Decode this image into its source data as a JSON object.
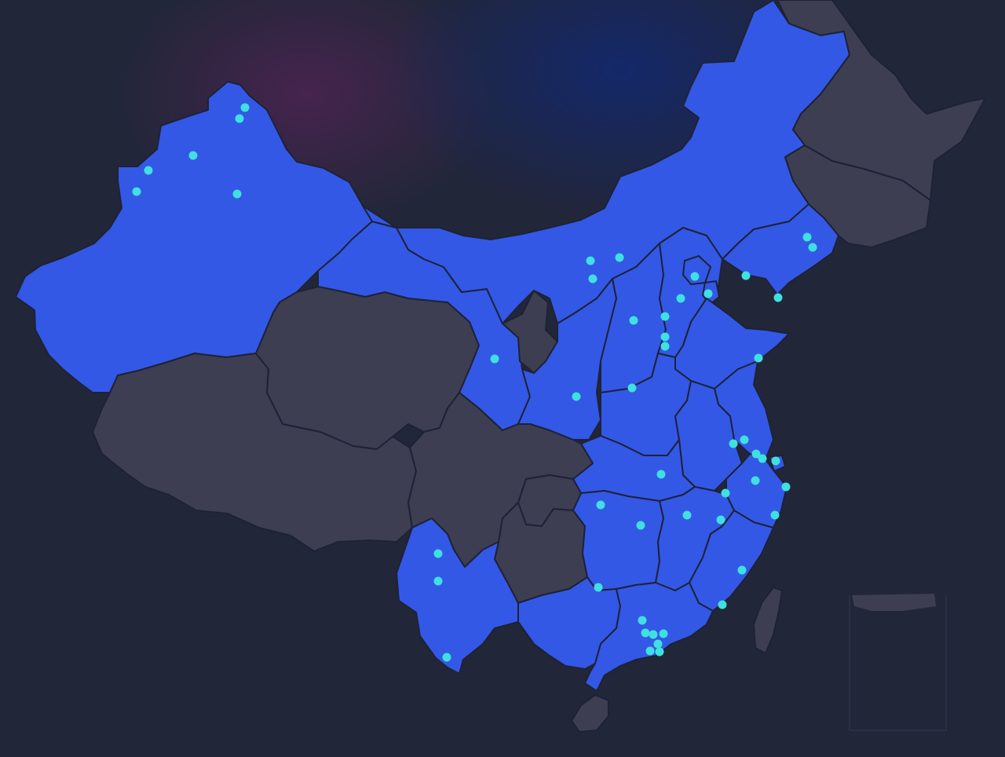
{
  "map": {
    "colors": {
      "background": "#222639",
      "glow_purple": "#4a2450",
      "glow_blue": "#14286a",
      "active_fill": "#3358e6",
      "inactive_fill": "#3d3e52",
      "border": "#1e2236",
      "marker": "#3fe0e0"
    },
    "regions": [
      {
        "name": "xinjiang",
        "active": true
      },
      {
        "name": "tibet",
        "active": false
      },
      {
        "name": "qinghai",
        "active": false
      },
      {
        "name": "gansu",
        "active": true
      },
      {
        "name": "inner-mongolia",
        "active": true
      },
      {
        "name": "ningxia",
        "active": false
      },
      {
        "name": "shaanxi",
        "active": true
      },
      {
        "name": "shanxi",
        "active": true
      },
      {
        "name": "hebei",
        "active": true
      },
      {
        "name": "beijing",
        "active": true
      },
      {
        "name": "tianjin",
        "active": true
      },
      {
        "name": "liaoning",
        "active": true
      },
      {
        "name": "jilin",
        "active": false
      },
      {
        "name": "heilongjiang",
        "active": false
      },
      {
        "name": "shandong",
        "active": true
      },
      {
        "name": "henan",
        "active": true
      },
      {
        "name": "jiangsu",
        "active": true
      },
      {
        "name": "anhui",
        "active": true
      },
      {
        "name": "shanghai",
        "active": true
      },
      {
        "name": "zhejiang",
        "active": true
      },
      {
        "name": "hubei",
        "active": true
      },
      {
        "name": "sichuan",
        "active": false
      },
      {
        "name": "chongqing",
        "active": false
      },
      {
        "name": "guizhou",
        "active": false
      },
      {
        "name": "yunnan",
        "active": true
      },
      {
        "name": "hunan",
        "active": true
      },
      {
        "name": "jiangxi",
        "active": true
      },
      {
        "name": "fujian",
        "active": true
      },
      {
        "name": "guangxi",
        "active": true
      },
      {
        "name": "guangdong",
        "active": true
      },
      {
        "name": "hainan",
        "active": false
      },
      {
        "name": "taiwan",
        "active": false
      }
    ],
    "markers": [
      {
        "region": "xinjiang"
      },
      {
        "region": "xinjiang"
      },
      {
        "region": "xinjiang"
      },
      {
        "region": "xinjiang"
      },
      {
        "region": "xinjiang"
      },
      {
        "region": "xinjiang"
      },
      {
        "region": "inner-mongolia"
      },
      {
        "region": "inner-mongolia"
      },
      {
        "region": "inner-mongolia"
      },
      {
        "region": "gansu"
      },
      {
        "region": "shaanxi"
      },
      {
        "region": "shanxi"
      },
      {
        "region": "beijing"
      },
      {
        "region": "tianjin"
      },
      {
        "region": "hebei"
      },
      {
        "region": "hebei"
      },
      {
        "region": "hebei"
      },
      {
        "region": "hebei"
      },
      {
        "region": "liaoning"
      },
      {
        "region": "liaoning"
      },
      {
        "region": "liaoning"
      },
      {
        "region": "liaoning"
      },
      {
        "region": "shandong"
      },
      {
        "region": "henan"
      },
      {
        "region": "hubei"
      },
      {
        "region": "jiangsu"
      },
      {
        "region": "jiangsu"
      },
      {
        "region": "jiangsu"
      },
      {
        "region": "jiangsu"
      },
      {
        "region": "shanghai"
      },
      {
        "region": "zhejiang"
      },
      {
        "region": "zhejiang"
      },
      {
        "region": "zhejiang"
      },
      {
        "region": "jiangxi"
      },
      {
        "region": "jiangxi"
      },
      {
        "region": "hunan"
      },
      {
        "region": "hunan"
      },
      {
        "region": "fujian"
      },
      {
        "region": "fujian"
      },
      {
        "region": "fujian"
      },
      {
        "region": "guangxi"
      },
      {
        "region": "guangxi"
      },
      {
        "region": "guangdong"
      },
      {
        "region": "guangdong"
      },
      {
        "region": "guangdong"
      },
      {
        "region": "guangdong"
      },
      {
        "region": "guangdong"
      },
      {
        "region": "guangdong"
      },
      {
        "region": "guangdong"
      },
      {
        "region": "yunnan"
      },
      {
        "region": "yunnan"
      },
      {
        "region": "yunnan"
      }
    ]
  }
}
